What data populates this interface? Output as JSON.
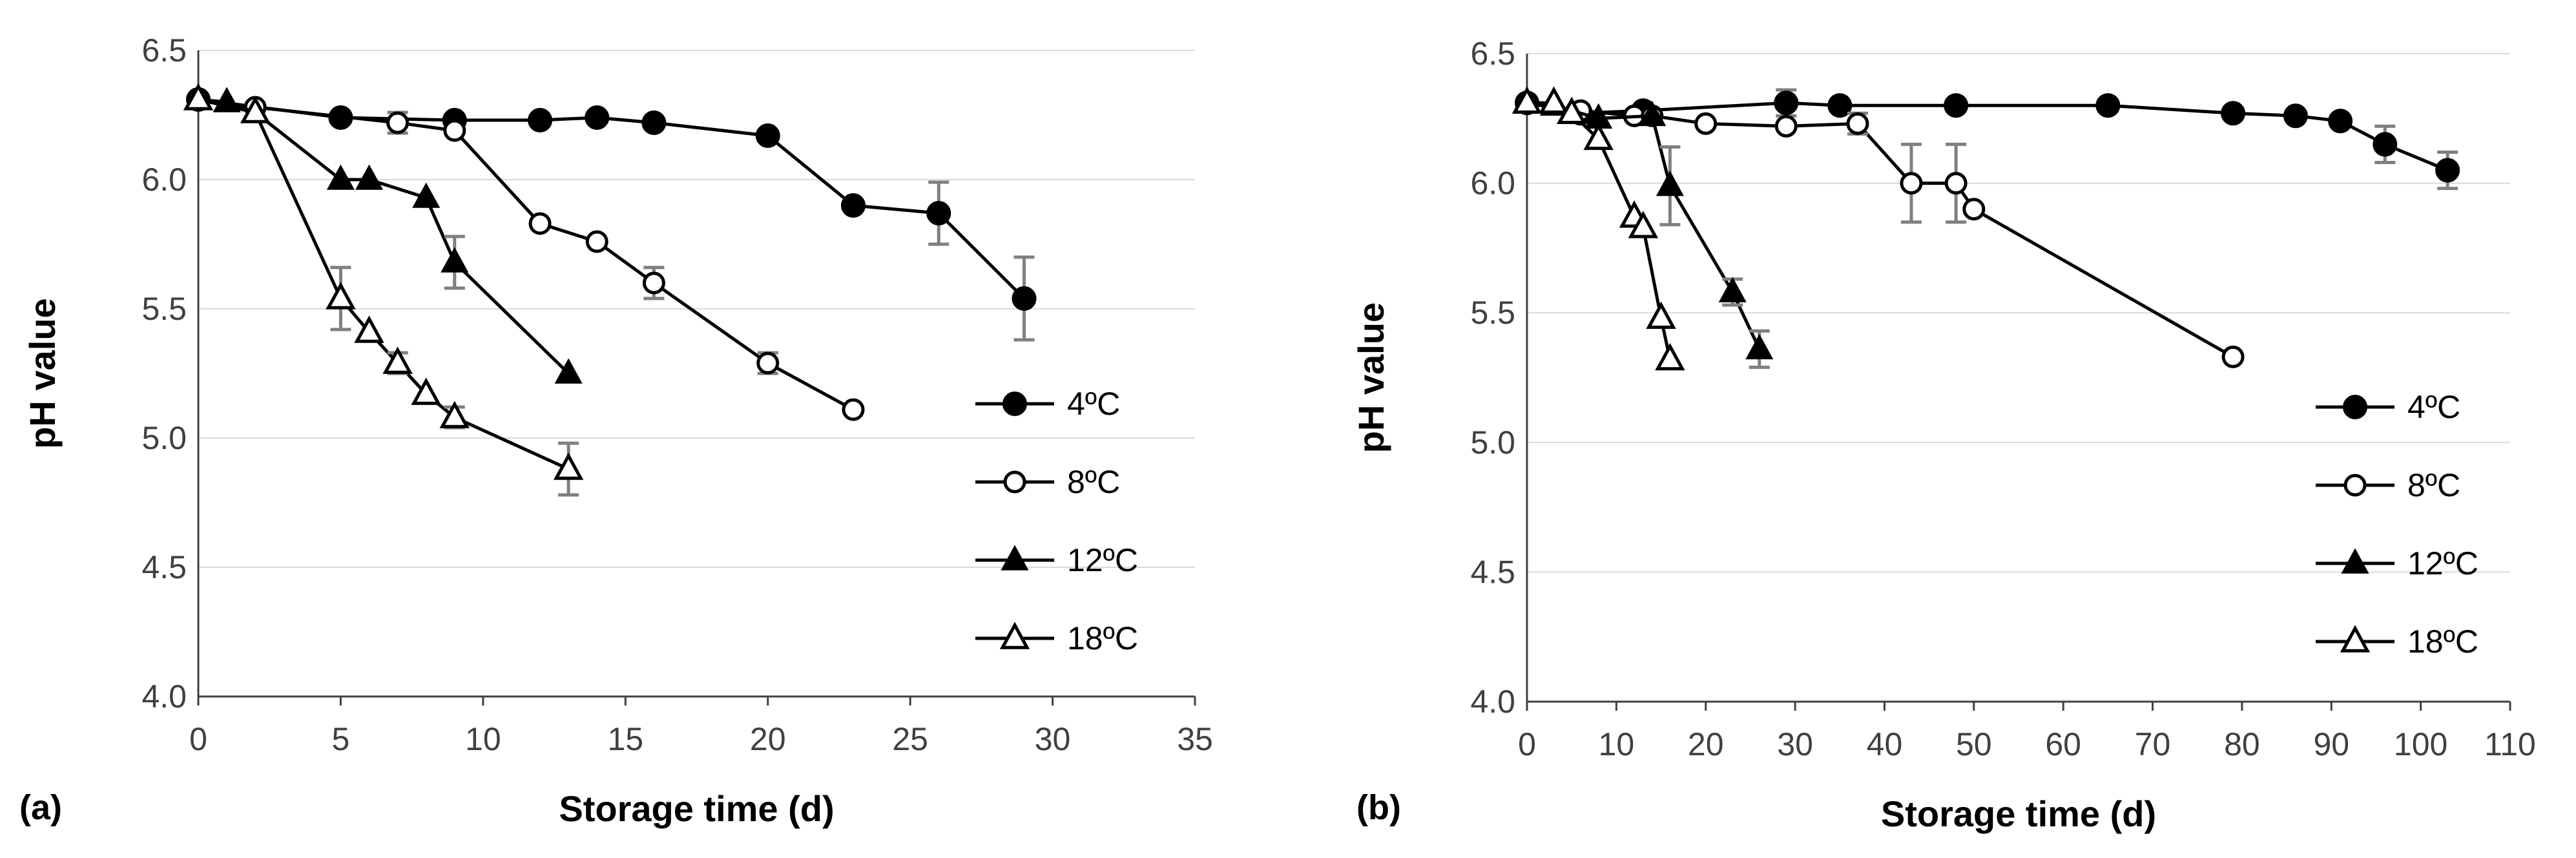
{
  "chart_data": [
    {
      "type": "line",
      "panel_label": "(a)",
      "xlabel": "Storage time (d)",
      "ylabel": "pH value",
      "xlim": [
        0,
        35
      ],
      "ylim": [
        4.0,
        6.5
      ],
      "xticks": [
        "0",
        "5",
        "10",
        "15",
        "20",
        "25",
        "30",
        "35"
      ],
      "yticks": [
        "4.0",
        "4.5",
        "5.0",
        "5.5",
        "6.0",
        "6.5"
      ],
      "grid": "horizontal",
      "legend_position": "right",
      "series": [
        {
          "name": "4ºC",
          "marker": "circle-filled",
          "x": [
            0,
            5,
            9,
            12,
            14,
            16,
            20,
            23,
            26,
            29
          ],
          "y": [
            6.31,
            6.24,
            6.23,
            6.23,
            6.24,
            6.22,
            6.17,
            5.9,
            5.87,
            5.54
          ],
          "err": [
            0,
            0,
            0,
            0,
            0,
            0,
            0,
            0,
            0.12,
            0.16
          ]
        },
        {
          "name": "8ºC",
          "marker": "circle-open",
          "x": [
            0,
            2,
            7,
            9,
            12,
            14,
            16,
            20,
            23
          ],
          "y": [
            6.31,
            6.28,
            6.22,
            6.19,
            5.83,
            5.76,
            5.6,
            5.29,
            5.11
          ],
          "err": [
            0,
            0,
            0.04,
            0,
            0,
            0,
            0.06,
            0.04,
            0
          ]
        },
        {
          "name": "12ºC",
          "marker": "triangle-filled",
          "x": [
            0,
            1,
            2,
            5,
            6,
            8,
            9,
            13
          ],
          "y": [
            6.31,
            6.3,
            6.26,
            6.0,
            6.0,
            5.93,
            5.68,
            5.25
          ],
          "err": [
            0,
            0,
            0,
            0,
            0,
            0,
            0.1,
            0
          ]
        },
        {
          "name": "18ºC",
          "marker": "triangle-open",
          "x": [
            0,
            2,
            5,
            6,
            7,
            8,
            9,
            13
          ],
          "y": [
            6.31,
            6.26,
            5.54,
            5.41,
            5.29,
            5.17,
            5.08,
            4.88
          ],
          "err": [
            0,
            0,
            0.12,
            0,
            0.04,
            0,
            0.04,
            0.1
          ]
        }
      ]
    },
    {
      "type": "line",
      "panel_label": "(b)",
      "xlabel": "Storage time (d)",
      "ylabel": "pH value",
      "xlim": [
        0,
        110
      ],
      "ylim": [
        4.0,
        6.5
      ],
      "xticks": [
        "0",
        "10",
        "20",
        "30",
        "40",
        "50",
        "60",
        "70",
        "80",
        "90",
        "100",
        "110"
      ],
      "yticks": [
        "4.0",
        "4.5",
        "5.0",
        "5.5",
        "6.0",
        "6.5"
      ],
      "grid": "horizontal",
      "legend_position": "right",
      "series": [
        {
          "name": "4ºC",
          "marker": "circle-filled",
          "x": [
            0,
            6,
            13,
            29,
            35,
            48,
            65,
            79,
            86,
            91,
            96,
            103
          ],
          "y": [
            6.31,
            6.27,
            6.28,
            6.31,
            6.3,
            6.3,
            6.3,
            6.27,
            6.26,
            6.24,
            6.15,
            6.05
          ],
          "err": [
            0,
            0,
            0,
            0.05,
            0,
            0,
            0,
            0,
            0,
            0,
            0.07,
            0.07
          ]
        },
        {
          "name": "8ºC",
          "marker": "circle-open",
          "x": [
            0,
            6,
            12,
            14,
            20,
            29,
            37,
            43,
            48,
            50,
            79
          ],
          "y": [
            6.31,
            6.28,
            6.26,
            6.26,
            6.23,
            6.22,
            6.23,
            6.0,
            6.0,
            5.9,
            5.33
          ],
          "err": [
            0,
            0,
            0,
            0,
            0,
            0,
            0.04,
            0.15,
            0.15,
            0,
            0
          ]
        },
        {
          "name": "12ºC",
          "marker": "triangle-filled",
          "x": [
            0,
            3,
            8,
            14,
            16,
            23,
            26
          ],
          "y": [
            6.31,
            6.3,
            6.25,
            6.26,
            5.99,
            5.58,
            5.36
          ],
          "err": [
            0,
            0,
            0,
            0,
            0.15,
            0.05,
            0.07
          ]
        },
        {
          "name": "18ºC",
          "marker": "triangle-open",
          "x": [
            0,
            3,
            5,
            8,
            12,
            13,
            15,
            16
          ],
          "y": [
            6.31,
            6.31,
            6.27,
            6.17,
            5.87,
            5.83,
            5.48,
            5.32
          ],
          "err": [
            0,
            0,
            0,
            0,
            0,
            0,
            0,
            0
          ]
        }
      ]
    }
  ]
}
